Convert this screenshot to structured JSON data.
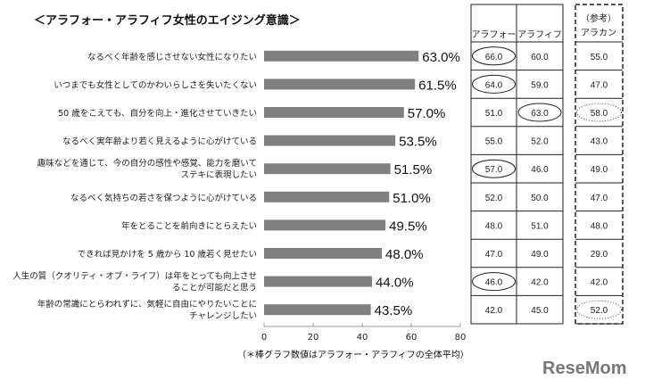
{
  "chart_data": {
    "type": "bar",
    "title": "＜アラフォー・アラフィフ女性のエイジング意識＞",
    "categories": [
      [
        "なるべく年齢を感じさせない女性になりたい"
      ],
      [
        "いつまでも女性としてのかわいらしさを失いたくない"
      ],
      [
        "50 歳をこえても、自分を向上・進化させていきたい"
      ],
      [
        "なるべく実年齢より若く見えるように心がけている"
      ],
      [
        "趣味などを通じて、今の自分の感性や感覚、能力を磨いて",
        "ステキに表現したい"
      ],
      [
        "なるべく気持ちの若さを保つように心がけている"
      ],
      [
        "年をとることを前向きにとらえたい"
      ],
      [
        "できれば見かけを 5 歳から 10 歳若く見せたい"
      ],
      [
        "人生の質（クオリティ・オブ・ライフ）は年をとっても向上させ",
        "ることが可能だと思う"
      ],
      [
        "年齢の常識にとらわれずに、気軽に自由にやりたいことに",
        "チャレンジしたい"
      ]
    ],
    "values": [
      63.0,
      61.5,
      57.0,
      53.5,
      51.5,
      51.0,
      49.5,
      48.0,
      44.0,
      43.5
    ],
    "value_labels": [
      "63.0%",
      "61.5%",
      "57.0%",
      "53.5%",
      "51.5%",
      "51.0%",
      "49.5%",
      "48.0%",
      "44.0%",
      "43.5%"
    ],
    "xlim": [
      0,
      80
    ],
    "xticks": [
      "0",
      "20",
      "40",
      "60",
      "80"
    ],
    "bar_color": "#808080",
    "grid": false,
    "note": "（＊棒グラフ数値はアラフォー・アラフィフの全体平均）"
  },
  "table": {
    "headers": [
      "アラフォー",
      "アラフィフ"
    ],
    "ref_header": [
      "（参考）",
      "アラカン"
    ],
    "rows": [
      {
        "a40": "66.0",
        "a50": "60.0",
        "a60": "55.0",
        "circle": "a40"
      },
      {
        "a40": "64.0",
        "a50": "59.0",
        "a60": "47.0",
        "circle": "a40"
      },
      {
        "a40": "51.0",
        "a50": "63.0",
        "a60": "58.0",
        "circle": "a50",
        "dotted": true
      },
      {
        "a40": "55.0",
        "a50": "52.0",
        "a60": "43.0"
      },
      {
        "a40": "57.0",
        "a50": "46.0",
        "a60": "49.0",
        "circle": "a40"
      },
      {
        "a40": "52.0",
        "a50": "50.0",
        "a60": "47.0"
      },
      {
        "a40": "48.0",
        "a50": "51.0",
        "a60": "48.0"
      },
      {
        "a40": "47.0",
        "a50": "49.0",
        "a60": "29.0"
      },
      {
        "a40": "46.0",
        "a50": "42.0",
        "a60": "42.0",
        "circle": "a40"
      },
      {
        "a40": "42.0",
        "a50": "45.0",
        "a60": "52.0",
        "dotted": true
      }
    ]
  },
  "logo": "ReseMom"
}
